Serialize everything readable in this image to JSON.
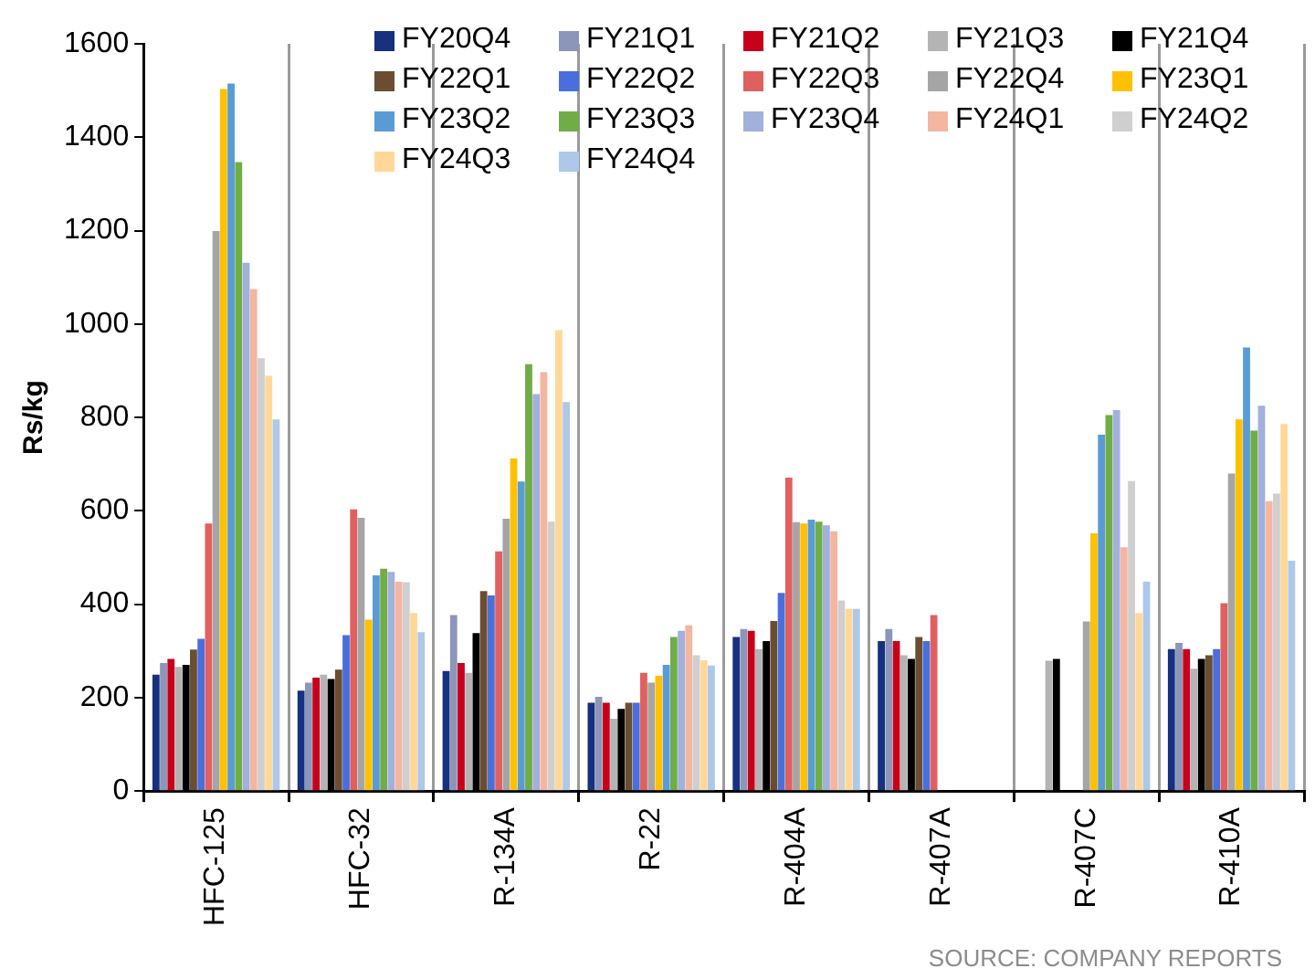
{
  "chart_data": {
    "type": "bar",
    "ylabel": "Rs/kg",
    "categories": [
      "HFC-125",
      "HFC-32",
      "R-134A",
      "R-22",
      "R-404A",
      "R-407A",
      "R-407C",
      "R-410A"
    ],
    "series": [
      {
        "name": "FY20Q4",
        "color": "#17307f",
        "values": [
          249,
          215,
          257,
          189,
          330,
          321,
          null,
          304
        ]
      },
      {
        "name": "FY21Q1",
        "color": "#8c96b8",
        "values": [
          274,
          232,
          377,
          202,
          347,
          347,
          null,
          317
        ]
      },
      {
        "name": "FY21Q2",
        "color": "#c8001a",
        "values": [
          283,
          243,
          274,
          189,
          343,
          321,
          null,
          304
        ]
      },
      {
        "name": "FY21Q3",
        "color": "#b4b4b4",
        "values": [
          266,
          249,
          253,
          155,
          304,
          291,
          279,
          262
        ]
      },
      {
        "name": "FY21Q4",
        "color": "#000000",
        "values": [
          270,
          240,
          338,
          176,
          321,
          283,
          283,
          283
        ]
      },
      {
        "name": "FY22Q1",
        "color": "#6b4e31",
        "values": [
          303,
          260,
          428,
          189,
          364,
          330,
          null,
          291
        ]
      },
      {
        "name": "FY22Q2",
        "color": "#4a6fdc",
        "values": [
          326,
          334,
          419,
          189,
          424,
          321,
          null,
          304
        ]
      },
      {
        "name": "FY22Q3",
        "color": "#e06060",
        "values": [
          573,
          603,
          513,
          253,
          671,
          377,
          null,
          402
        ]
      },
      {
        "name": "FY22Q4",
        "color": "#a5a5a5",
        "values": [
          1199,
          585,
          583,
          232,
          576,
          null,
          363,
          680
        ]
      },
      {
        "name": "FY23Q1",
        "color": "#ffc000",
        "values": [
          1503,
          367,
          712,
          247,
          573,
          null,
          552,
          796
        ]
      },
      {
        "name": "FY23Q2",
        "color": "#5b9bd5",
        "values": [
          1515,
          462,
          663,
          270,
          581,
          null,
          763,
          950
        ]
      },
      {
        "name": "FY23Q3",
        "color": "#70ad47",
        "values": [
          1347,
          476,
          914,
          330,
          577,
          null,
          805,
          772
        ]
      },
      {
        "name": "FY23Q4",
        "color": "#a2b0dc",
        "values": [
          1131,
          469,
          850,
          343,
          569,
          null,
          816,
          825
        ]
      },
      {
        "name": "FY24Q1",
        "color": "#f4b6a0",
        "values": [
          1075,
          448,
          897,
          355,
          556,
          null,
          522,
          621
        ]
      },
      {
        "name": "FY24Q2",
        "color": "#cfcfcf",
        "values": [
          927,
          447,
          577,
          291,
          408,
          null,
          664,
          637
        ]
      },
      {
        "name": "FY24Q3",
        "color": "#ffd899",
        "values": [
          889,
          381,
          987,
          280,
          390,
          null,
          381,
          786
        ]
      },
      {
        "name": "FY24Q4",
        "color": "#adc8e8",
        "values": [
          796,
          340,
          833,
          269,
          390,
          null,
          448,
          493
        ]
      }
    ],
    "ylim": [
      0,
      1600
    ],
    "yticks": [
      0,
      200,
      400,
      600,
      800,
      1000,
      1200,
      1400,
      1600
    ],
    "grid": "x",
    "legend": "top right",
    "annotations": [
      "SOURCE: COMPANY REPORTS"
    ]
  }
}
